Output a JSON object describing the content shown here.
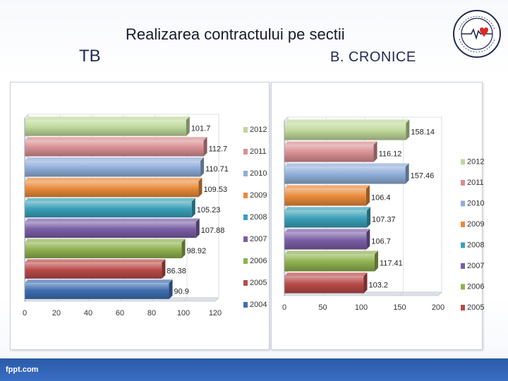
{
  "header": {
    "title": "Realizarea contractului pe sectii",
    "left_label": "TB",
    "right_label": "B. CRONICE"
  },
  "footer": {
    "text": "fppt.com"
  },
  "logo": {
    "icon": "hospital-seal-icon",
    "text": "SPITALUL PENUMONIA DE TOTALI"
  },
  "colors": {
    "2004": "#3f6fb0",
    "2005": "#b94a48",
    "2006": "#8fb04f",
    "2007": "#7a5ea5",
    "2008": "#3aa0b8",
    "2009": "#e98a3a",
    "2010": "#8fadd8",
    "2011": "#d88f92",
    "2012": "#bfd89a",
    "footer": "#2a5aa8"
  },
  "chart_data": [
    {
      "type": "bar",
      "orientation": "horizontal",
      "title": "",
      "categories": [
        "2012",
        "2011",
        "2010",
        "2009",
        "2008",
        "2007",
        "2006",
        "2005",
        "2004"
      ],
      "values": [
        101.7,
        112.7,
        110.71,
        109.53,
        105.23,
        107.88,
        98.92,
        86.38,
        90.9
      ],
      "data_labels": [
        "101.7",
        "112.7",
        "110.71",
        "109.53",
        "105.23",
        "107.88",
        "98.92",
        "86.38",
        "90.9"
      ],
      "xlim": [
        0,
        120
      ],
      "xticks": [
        "0",
        "20",
        "40",
        "60",
        "80",
        "100",
        "120"
      ],
      "grid": true,
      "legend": "right"
    },
    {
      "type": "bar",
      "orientation": "horizontal",
      "title": "",
      "categories": [
        "2012",
        "2011",
        "2010",
        "2009",
        "2008",
        "2007",
        "2006",
        "2005"
      ],
      "values": [
        158.14,
        116.12,
        157.46,
        106.4,
        107.37,
        106.7,
        117.41,
        103.2
      ],
      "data_labels": [
        "158.14",
        "116.12",
        "157.46",
        "106.4",
        "107.37",
        "106.7",
        "117.41",
        "103.2"
      ],
      "xlim": [
        0,
        200
      ],
      "xticks": [
        "0",
        "50",
        "100",
        "150",
        "200"
      ],
      "grid": true,
      "legend": "right"
    }
  ]
}
